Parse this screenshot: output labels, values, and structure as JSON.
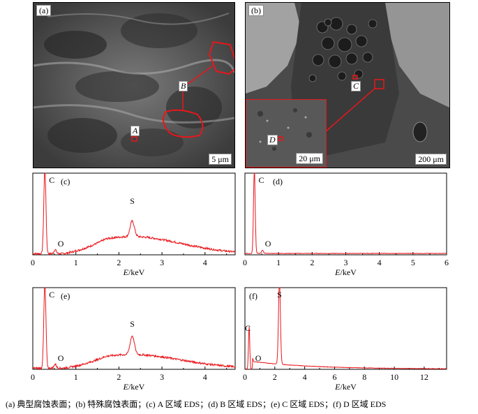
{
  "panels": {
    "a": {
      "label": "(a)",
      "scale": "5 μm",
      "roi_A": "A",
      "roi_B": "B"
    },
    "b": {
      "label": "(b)",
      "scale_main": "200 μm",
      "scale_inset": "20 μm",
      "roi_C": "C",
      "roi_D": "D"
    }
  },
  "colors": {
    "accent": "#e8161b",
    "sem_bg": "#5a5a5a"
  },
  "chart_data": [
    {
      "panel": "(c)",
      "type": "line",
      "xlabel": "E/keV",
      "xlim": [
        0,
        4.7
      ],
      "x_ticks": [
        "0",
        "1",
        "2",
        "3",
        "4"
      ],
      "peaks": [
        {
          "label": "C",
          "x": 0.28
        },
        {
          "label": "O",
          "x": 0.52
        },
        {
          "label": "S",
          "x": 2.31
        }
      ]
    },
    {
      "panel": "(d)",
      "type": "line",
      "xlabel": "E/keV",
      "xlim": [
        0,
        6
      ],
      "x_ticks": [
        "0",
        "1",
        "2",
        "3",
        "4",
        "5",
        "6"
      ],
      "peaks": [
        {
          "label": "C",
          "x": 0.28
        },
        {
          "label": "O",
          "x": 0.52
        }
      ]
    },
    {
      "panel": "(e)",
      "type": "line",
      "xlabel": "E/keV",
      "xlim": [
        0,
        4.7
      ],
      "x_ticks": [
        "0",
        "1",
        "2",
        "3",
        "4"
      ],
      "peaks": [
        {
          "label": "C",
          "x": 0.28
        },
        {
          "label": "O",
          "x": 0.52
        },
        {
          "label": "S",
          "x": 2.31
        }
      ]
    },
    {
      "panel": "(f)",
      "type": "line",
      "xlabel": "E/keV",
      "xlim": [
        0,
        13.5
      ],
      "x_ticks": [
        "0",
        "2",
        "4",
        "6",
        "8",
        "10",
        "12"
      ],
      "peaks": [
        {
          "label": "C",
          "x": 0.28
        },
        {
          "label": "O",
          "x": 0.52
        },
        {
          "label": "S",
          "x": 2.31
        }
      ]
    }
  ],
  "caption": "(a) 典型腐蚀表面；(b) 特殊腐蚀表面；(c) A 区域 EDS；(d) B 区域 EDS；(e) C 区域 EDS；(f) D 区域 EDS"
}
